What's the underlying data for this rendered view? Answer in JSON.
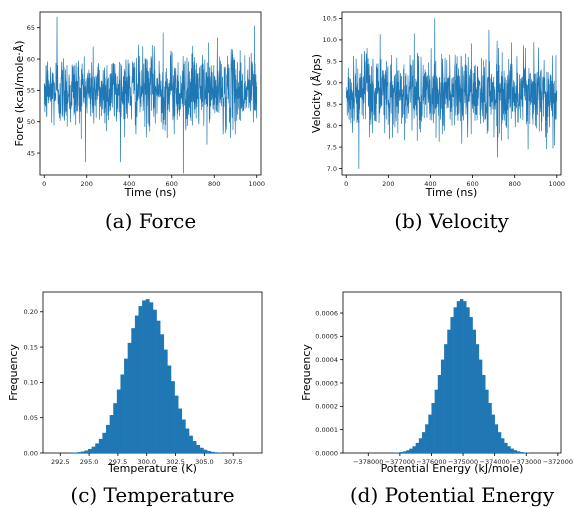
{
  "colors": {
    "series": "#1f77b4",
    "axis": "#000000",
    "background": "#ffffff"
  },
  "chart_data": [
    {
      "id": "force",
      "type": "line",
      "caption": "(a) Force",
      "xlabel": "Time (ns)",
      "ylabel": "Force (kcal/mole·Å)",
      "xlim": [
        -20,
        1020
      ],
      "ylim": [
        41.5,
        67.5
      ],
      "xticks": [
        0,
        200,
        400,
        600,
        800,
        1000
      ],
      "yticks": [
        45,
        50,
        55,
        60,
        65
      ],
      "series": [
        {
          "x_start": 0,
          "x_end": 1000,
          "n_points": 1000,
          "mean": 55.0,
          "std": 3.0,
          "min": 41.8,
          "max": 66.7,
          "sample": [
            {
              "x": 0,
              "y": 56.1
            },
            {
              "x": 60,
              "y": 66.7
            },
            {
              "x": 100,
              "y": 58.3
            },
            {
              "x": 200,
              "y": 54.2
            },
            {
              "x": 300,
              "y": 51.8
            },
            {
              "x": 400,
              "y": 55.4
            },
            {
              "x": 500,
              "y": 56.0
            },
            {
              "x": 560,
              "y": 64.2
            },
            {
              "x": 655,
              "y": 41.8
            },
            {
              "x": 800,
              "y": 55.1
            },
            {
              "x": 900,
              "y": 53.7
            },
            {
              "x": 990,
              "y": 65.3
            },
            {
              "x": 1000,
              "y": 55.6
            }
          ]
        }
      ]
    },
    {
      "id": "velocity",
      "type": "line",
      "caption": "(b) Velocity",
      "xlabel": "Time (ns)",
      "ylabel": "Velocity (Å/ps)",
      "xlim": [
        -20,
        1020
      ],
      "ylim": [
        6.85,
        10.65
      ],
      "xticks": [
        0,
        200,
        400,
        600,
        800,
        1000
      ],
      "yticks": [
        7.0,
        7.5,
        8.0,
        8.5,
        9.0,
        9.5,
        10.0,
        10.5
      ],
      "series": [
        {
          "x_start": 0,
          "x_end": 1000,
          "n_points": 1000,
          "mean": 8.75,
          "std": 0.45,
          "min": 7.0,
          "max": 10.5,
          "sample": [
            {
              "x": 0,
              "y": 8.9
            },
            {
              "x": 60,
              "y": 7.0
            },
            {
              "x": 100,
              "y": 9.2
            },
            {
              "x": 200,
              "y": 8.6
            },
            {
              "x": 300,
              "y": 8.8
            },
            {
              "x": 420,
              "y": 10.5
            },
            {
              "x": 500,
              "y": 8.7
            },
            {
              "x": 600,
              "y": 8.4
            },
            {
              "x": 700,
              "y": 9.0
            },
            {
              "x": 800,
              "y": 8.7
            },
            {
              "x": 900,
              "y": 8.5
            },
            {
              "x": 1000,
              "y": 8.8
            }
          ]
        }
      ]
    },
    {
      "id": "temperature",
      "type": "bar",
      "caption": "(c) Temperature",
      "xlabel": "Temperature (K)",
      "ylabel": "Frequency",
      "xlim": [
        291.0,
        310.0
      ],
      "ylim": [
        0,
        0.228
      ],
      "xticks": [
        292.5,
        295.0,
        297.5,
        300.0,
        302.5,
        305.0,
        307.5
      ],
      "yticks": [
        0.0,
        0.05,
        0.1,
        0.15,
        0.2
      ],
      "histogram": {
        "mean": 300.0,
        "std": 1.83,
        "peak": 0.218,
        "x_min": 292.4,
        "x_max": 309.3,
        "bins": 54
      }
    },
    {
      "id": "potential_energy",
      "type": "bar",
      "caption": "(d) Potential Energy",
      "xlabel": "Potential Energy (kJ/mole)",
      "ylabel": "Frequency",
      "xlim": [
        -378800,
        -371900
      ],
      "ylim": [
        0,
        0.00069
      ],
      "xticks": [
        -378000,
        -377000,
        -376000,
        -375000,
        -374000,
        -373000,
        -372000
      ],
      "yticks": [
        0.0,
        0.0001,
        0.0002,
        0.0003,
        0.0004,
        0.0005,
        0.0006
      ],
      "histogram": {
        "mean": -375050,
        "std": 600,
        "peak": 0.00066,
        "x_min": -377700,
        "x_max": -372300,
        "bins": 54
      }
    }
  ]
}
